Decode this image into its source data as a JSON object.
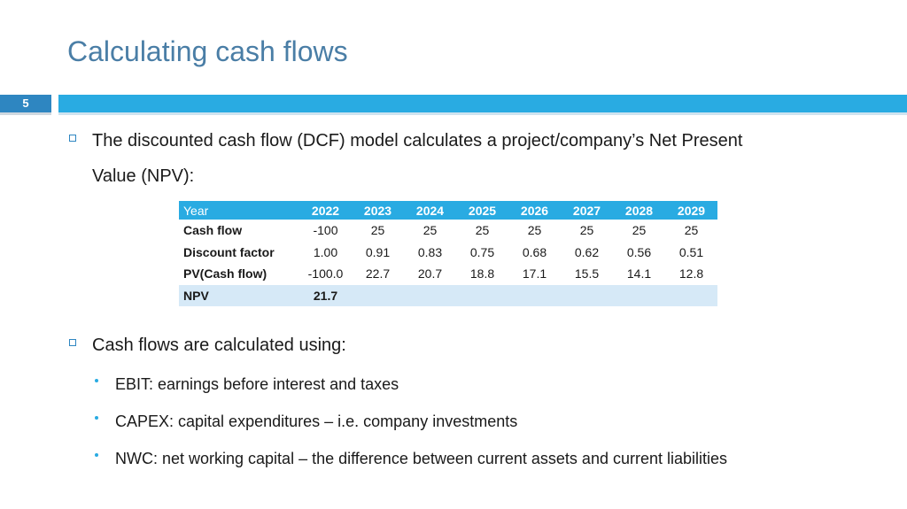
{
  "slide": {
    "title": "Calculating cash flows",
    "number": "5"
  },
  "colors": {
    "title": "#4a7ea6",
    "accent_bar": "#29abe2",
    "slide_number_bg": "#2e86c1",
    "table_header": "#29abe2",
    "npv_row": "#d6e9f7"
  },
  "bullets": {
    "dcf_line1": "The discounted cash flow (DCF) model calculates a project/company’s Net Present",
    "dcf_line2": "Value (NPV):",
    "cash_flows": "Cash flows are calculated using:",
    "sub": [
      "EBIT: earnings before interest and taxes",
      "CAPEX: capital expenditures – i.e. company investments",
      "NWC: net working capital – the difference between current assets and current liabilities"
    ]
  },
  "table": {
    "header_label": "Year",
    "years": [
      "2022",
      "2023",
      "2024",
      "2025",
      "2026",
      "2027",
      "2028",
      "2029"
    ],
    "rows": [
      {
        "label": "Cash flow",
        "values": [
          "-100",
          "25",
          "25",
          "25",
          "25",
          "25",
          "25",
          "25"
        ]
      },
      {
        "label": "Discount factor",
        "values": [
          "1.00",
          "0.91",
          "0.83",
          "0.75",
          "0.68",
          "0.62",
          "0.56",
          "0.51"
        ]
      },
      {
        "label": "PV(Cash flow)",
        "values": [
          "-100.0",
          "22.7",
          "20.7",
          "18.8",
          "17.1",
          "15.5",
          "14.1",
          "12.8"
        ]
      }
    ],
    "npv_label": "NPV",
    "npv_value": "21.7"
  }
}
